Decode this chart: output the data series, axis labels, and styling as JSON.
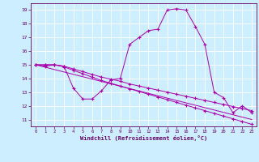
{
  "xlabel": "Windchill (Refroidissement éolien,°C)",
  "background_color": "#cceeff",
  "grid_color": "#ffffff",
  "line_color": "#aa00aa",
  "xlim": [
    -0.5,
    23.5
  ],
  "ylim": [
    10.5,
    19.5
  ],
  "xticks": [
    0,
    1,
    2,
    3,
    4,
    5,
    6,
    7,
    8,
    9,
    10,
    11,
    12,
    13,
    14,
    15,
    16,
    17,
    18,
    19,
    20,
    21,
    22,
    23
  ],
  "yticks": [
    11,
    12,
    13,
    14,
    15,
    16,
    17,
    18,
    19
  ],
  "line1_x": [
    0,
    1,
    2,
    3,
    4,
    5,
    6,
    7,
    8,
    9,
    10,
    11,
    12,
    13,
    14,
    15,
    16,
    17,
    18,
    19,
    20,
    21,
    22,
    23
  ],
  "line1_y": [
    15.0,
    14.9,
    15.0,
    14.9,
    13.3,
    12.5,
    12.5,
    13.1,
    13.9,
    14.0,
    16.5,
    17.0,
    17.5,
    17.6,
    19.0,
    19.1,
    19.0,
    17.8,
    16.5,
    13.0,
    12.6,
    11.5,
    12.0,
    11.5
  ],
  "line2_x": [
    0,
    23
  ],
  "line2_y": [
    15.0,
    11.0
  ],
  "line3_x": [
    0,
    1,
    2,
    3,
    4,
    5,
    6,
    7,
    8,
    9,
    10,
    11,
    12,
    13,
    14,
    15,
    16,
    17,
    18,
    19,
    20,
    21,
    22,
    23
  ],
  "line3_y": [
    15.0,
    15.0,
    15.0,
    14.9,
    14.7,
    14.5,
    14.3,
    14.1,
    13.95,
    13.8,
    13.6,
    13.45,
    13.3,
    13.15,
    13.0,
    12.85,
    12.7,
    12.55,
    12.4,
    12.25,
    12.1,
    11.95,
    11.8,
    11.65
  ],
  "line4_x": [
    0,
    1,
    2,
    3,
    4,
    5,
    6,
    7,
    8,
    9,
    10,
    11,
    12,
    13,
    14,
    15,
    16,
    17,
    18,
    19,
    20,
    21,
    22,
    23
  ],
  "line4_y": [
    15.0,
    15.0,
    15.0,
    14.85,
    14.6,
    14.35,
    14.1,
    13.85,
    13.65,
    13.45,
    13.25,
    13.05,
    12.85,
    12.65,
    12.45,
    12.25,
    12.05,
    11.85,
    11.65,
    11.45,
    11.25,
    11.05,
    10.85,
    10.65
  ],
  "figsize": [
    3.2,
    2.0
  ],
  "dpi": 100
}
